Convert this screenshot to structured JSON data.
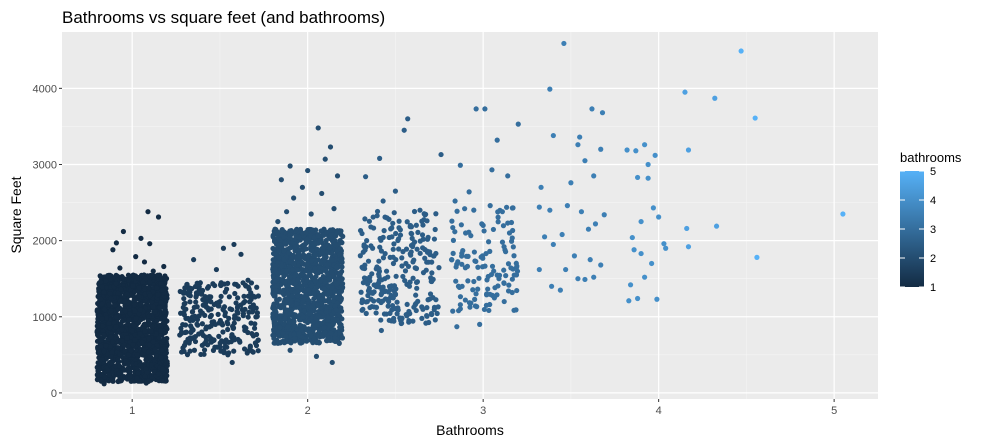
{
  "chart_data": {
    "type": "scatter",
    "title": "Bathrooms vs square feet (and bathrooms)",
    "xlabel": "Bathrooms",
    "ylabel": "Square Feet",
    "xlim": [
      0.6,
      5.25
    ],
    "ylim": [
      -80,
      4740
    ],
    "xticks": [
      1,
      2,
      3,
      4,
      5
    ],
    "yticks": [
      0,
      1000,
      2000,
      3000,
      4000
    ],
    "grid": true,
    "panel_background": "#ebebeb",
    "legend": {
      "title": "bathrooms",
      "placement": "right",
      "type": "colorbar",
      "breaks": [
        1,
        2,
        3,
        4,
        5
      ],
      "low_color": "#132b43",
      "high_color": "#56b1f7"
    },
    "points": [
      {
        "x": 0.95,
        "y": 2120,
        "c": 1
      },
      {
        "x": 1.05,
        "y": 2030,
        "c": 1
      },
      {
        "x": 1.09,
        "y": 2380,
        "c": 1
      },
      {
        "x": 1.15,
        "y": 2310,
        "c": 1
      },
      {
        "x": 0.89,
        "y": 1880,
        "c": 1
      },
      {
        "x": 1.1,
        "y": 1960,
        "c": 1
      },
      {
        "x": 1.02,
        "y": 1790,
        "c": 1
      },
      {
        "x": 1.18,
        "y": 1660,
        "c": 1
      },
      {
        "x": 0.86,
        "y": 1540,
        "c": 1
      },
      {
        "x": 1.12,
        "y": 1600,
        "c": 1
      },
      {
        "x": 0.93,
        "y": 1640,
        "c": 1
      },
      {
        "x": 1.19,
        "y": 1500,
        "c": 1
      },
      {
        "x": 0.98,
        "y": 1480,
        "c": 1
      },
      {
        "x": 0.84,
        "y": 1320,
        "c": 1
      },
      {
        "x": 1.14,
        "y": 1380,
        "c": 1
      },
      {
        "x": 0.88,
        "y": 1080,
        "c": 1
      },
      {
        "x": 1.16,
        "y": 1120,
        "c": 1
      },
      {
        "x": 0.85,
        "y": 620,
        "c": 1
      },
      {
        "x": 1.17,
        "y": 560,
        "c": 1
      },
      {
        "x": 0.86,
        "y": 300,
        "c": 1
      },
      {
        "x": 1.15,
        "y": 250,
        "c": 1
      },
      {
        "x": 0.92,
        "y": 150,
        "c": 1
      },
      {
        "x": 1.08,
        "y": 130,
        "c": 1
      },
      {
        "x": 0.84,
        "y": 120,
        "c": 1
      },
      {
        "x": 1.07,
        "y": 1720,
        "c": 1
      },
      {
        "x": 0.91,
        "y": 1970,
        "c": 1
      },
      {
        "x": 1.3,
        "y": 1380,
        "c": 1.5
      },
      {
        "x": 1.35,
        "y": 1750,
        "c": 1.5
      },
      {
        "x": 1.38,
        "y": 1330,
        "c": 1.5
      },
      {
        "x": 1.42,
        "y": 1180,
        "c": 1.5
      },
      {
        "x": 1.48,
        "y": 1620,
        "c": 1.5
      },
      {
        "x": 1.52,
        "y": 1900,
        "c": 1.5
      },
      {
        "x": 1.58,
        "y": 1950,
        "c": 1.5
      },
      {
        "x": 1.62,
        "y": 1820,
        "c": 1.5
      },
      {
        "x": 1.57,
        "y": 400,
        "c": 1.5
      },
      {
        "x": 1.4,
        "y": 1050,
        "c": 1.5
      },
      {
        "x": 1.33,
        "y": 950,
        "c": 1.5
      },
      {
        "x": 1.45,
        "y": 880,
        "c": 1.5
      },
      {
        "x": 1.55,
        "y": 980,
        "c": 1.5
      },
      {
        "x": 1.6,
        "y": 1120,
        "c": 1.5
      },
      {
        "x": 1.66,
        "y": 1480,
        "c": 1.5
      },
      {
        "x": 1.7,
        "y": 1260,
        "c": 1.5
      },
      {
        "x": 1.36,
        "y": 740,
        "c": 1.5
      },
      {
        "x": 1.47,
        "y": 1410,
        "c": 1.5
      },
      {
        "x": 1.9,
        "y": 2980,
        "c": 2
      },
      {
        "x": 2.06,
        "y": 3480,
        "c": 2
      },
      {
        "x": 2.13,
        "y": 3230,
        "c": 2
      },
      {
        "x": 2.1,
        "y": 3070,
        "c": 2
      },
      {
        "x": 2.0,
        "y": 2920,
        "c": 2
      },
      {
        "x": 1.85,
        "y": 2800,
        "c": 2
      },
      {
        "x": 1.97,
        "y": 2700,
        "c": 2
      },
      {
        "x": 2.17,
        "y": 2850,
        "c": 2
      },
      {
        "x": 1.92,
        "y": 2560,
        "c": 2
      },
      {
        "x": 2.08,
        "y": 2620,
        "c": 2
      },
      {
        "x": 2.02,
        "y": 2350,
        "c": 2
      },
      {
        "x": 1.88,
        "y": 2380,
        "c": 2
      },
      {
        "x": 1.83,
        "y": 2250,
        "c": 2
      },
      {
        "x": 2.15,
        "y": 2420,
        "c": 2
      },
      {
        "x": 1.9,
        "y": 560,
        "c": 2
      },
      {
        "x": 2.05,
        "y": 480,
        "c": 2
      },
      {
        "x": 2.14,
        "y": 400,
        "c": 2
      },
      {
        "x": 1.86,
        "y": 680,
        "c": 2
      },
      {
        "x": 2.18,
        "y": 650,
        "c": 2
      },
      {
        "x": 2.33,
        "y": 2840,
        "c": 2.5
      },
      {
        "x": 2.41,
        "y": 3080,
        "c": 2.5
      },
      {
        "x": 2.5,
        "y": 2650,
        "c": 2.5
      },
      {
        "x": 2.55,
        "y": 3450,
        "c": 2.5
      },
      {
        "x": 2.57,
        "y": 3600,
        "c": 2.5
      },
      {
        "x": 2.43,
        "y": 2520,
        "c": 2.5
      },
      {
        "x": 2.64,
        "y": 2400,
        "c": 2.5
      },
      {
        "x": 2.68,
        "y": 2260,
        "c": 2.5
      },
      {
        "x": 2.76,
        "y": 3130,
        "c": 2.5
      },
      {
        "x": 2.36,
        "y": 2180,
        "c": 2.5
      },
      {
        "x": 2.48,
        "y": 2050,
        "c": 2.5
      },
      {
        "x": 2.6,
        "y": 1950,
        "c": 2.5
      },
      {
        "x": 2.72,
        "y": 1800,
        "c": 2.5
      },
      {
        "x": 2.31,
        "y": 1650,
        "c": 2.5
      },
      {
        "x": 2.44,
        "y": 1500,
        "c": 2.5
      },
      {
        "x": 2.58,
        "y": 1400,
        "c": 2.5
      },
      {
        "x": 2.7,
        "y": 1300,
        "c": 2.5
      },
      {
        "x": 2.34,
        "y": 1200,
        "c": 2.5
      },
      {
        "x": 2.39,
        "y": 1050,
        "c": 2.5
      },
      {
        "x": 2.53,
        "y": 950,
        "c": 2.5
      },
      {
        "x": 2.65,
        "y": 1130,
        "c": 2.5
      },
      {
        "x": 2.42,
        "y": 820,
        "c": 2.5
      },
      {
        "x": 2.56,
        "y": 1700,
        "c": 2.5
      },
      {
        "x": 2.66,
        "y": 1580,
        "c": 2.5
      },
      {
        "x": 2.37,
        "y": 1900,
        "c": 2.5
      },
      {
        "x": 2.47,
        "y": 1780,
        "c": 2.5
      },
      {
        "x": 2.87,
        "y": 2990,
        "c": 3
      },
      {
        "x": 2.96,
        "y": 3730,
        "c": 3
      },
      {
        "x": 3.01,
        "y": 3730,
        "c": 3
      },
      {
        "x": 3.08,
        "y": 3320,
        "c": 3
      },
      {
        "x": 3.2,
        "y": 3530,
        "c": 3
      },
      {
        "x": 3.05,
        "y": 2930,
        "c": 3
      },
      {
        "x": 3.14,
        "y": 2850,
        "c": 3
      },
      {
        "x": 2.84,
        "y": 2520,
        "c": 3
      },
      {
        "x": 2.92,
        "y": 2640,
        "c": 3
      },
      {
        "x": 3.17,
        "y": 2430,
        "c": 3
      },
      {
        "x": 2.9,
        "y": 2100,
        "c": 3
      },
      {
        "x": 3.0,
        "y": 2200,
        "c": 3
      },
      {
        "x": 3.11,
        "y": 1980,
        "c": 3
      },
      {
        "x": 2.82,
        "y": 1750,
        "c": 3
      },
      {
        "x": 2.95,
        "y": 1850,
        "c": 3
      },
      {
        "x": 3.06,
        "y": 1600,
        "c": 3
      },
      {
        "x": 3.19,
        "y": 1550,
        "c": 3
      },
      {
        "x": 2.88,
        "y": 1400,
        "c": 3
      },
      {
        "x": 3.02,
        "y": 1300,
        "c": 3
      },
      {
        "x": 3.12,
        "y": 1200,
        "c": 3
      },
      {
        "x": 2.86,
        "y": 1080,
        "c": 3
      },
      {
        "x": 2.93,
        "y": 1180,
        "c": 3
      },
      {
        "x": 2.85,
        "y": 870,
        "c": 3
      },
      {
        "x": 2.98,
        "y": 900,
        "c": 3
      },
      {
        "x": 3.09,
        "y": 1500,
        "c": 3
      },
      {
        "x": 2.97,
        "y": 1650,
        "c": 3
      },
      {
        "x": 3.15,
        "y": 2100,
        "c": 3
      },
      {
        "x": 3.04,
        "y": 2460,
        "c": 3
      },
      {
        "x": 3.38,
        "y": 3990,
        "c": 3.5
      },
      {
        "x": 3.46,
        "y": 4590,
        "c": 3.5
      },
      {
        "x": 3.4,
        "y": 3380,
        "c": 3.5
      },
      {
        "x": 3.55,
        "y": 3360,
        "c": 3.5
      },
      {
        "x": 3.54,
        "y": 3260,
        "c": 3.5
      },
      {
        "x": 3.62,
        "y": 3730,
        "c": 3.5
      },
      {
        "x": 3.68,
        "y": 3680,
        "c": 3.5
      },
      {
        "x": 3.67,
        "y": 3200,
        "c": 3.5
      },
      {
        "x": 3.58,
        "y": 3050,
        "c": 3.5
      },
      {
        "x": 3.5,
        "y": 2760,
        "c": 3.5
      },
      {
        "x": 3.63,
        "y": 2850,
        "c": 3.5
      },
      {
        "x": 3.33,
        "y": 2700,
        "c": 3.5
      },
      {
        "x": 3.32,
        "y": 2440,
        "c": 3.5
      },
      {
        "x": 3.38,
        "y": 2400,
        "c": 3.5
      },
      {
        "x": 3.48,
        "y": 2460,
        "c": 3.5
      },
      {
        "x": 3.56,
        "y": 2380,
        "c": 3.5
      },
      {
        "x": 3.69,
        "y": 2340,
        "c": 3.5
      },
      {
        "x": 3.6,
        "y": 2150,
        "c": 3.5
      },
      {
        "x": 3.64,
        "y": 2220,
        "c": 3.5
      },
      {
        "x": 3.35,
        "y": 2050,
        "c": 3.5
      },
      {
        "x": 3.45,
        "y": 2080,
        "c": 3.5
      },
      {
        "x": 3.4,
        "y": 1950,
        "c": 3.5
      },
      {
        "x": 3.52,
        "y": 1800,
        "c": 3.5
      },
      {
        "x": 3.61,
        "y": 1750,
        "c": 3.5
      },
      {
        "x": 3.67,
        "y": 1680,
        "c": 3.5
      },
      {
        "x": 3.54,
        "y": 1500,
        "c": 3.5
      },
      {
        "x": 3.58,
        "y": 1490,
        "c": 3.5
      },
      {
        "x": 3.63,
        "y": 1520,
        "c": 3.5
      },
      {
        "x": 3.39,
        "y": 1400,
        "c": 3.5
      },
      {
        "x": 3.44,
        "y": 1350,
        "c": 3.5
      },
      {
        "x": 3.32,
        "y": 1620,
        "c": 3.5
      },
      {
        "x": 3.47,
        "y": 1620,
        "c": 3.5
      },
      {
        "x": 3.82,
        "y": 3190,
        "c": 4
      },
      {
        "x": 3.87,
        "y": 3180,
        "c": 4
      },
      {
        "x": 3.92,
        "y": 3260,
        "c": 4
      },
      {
        "x": 3.98,
        "y": 3120,
        "c": 4
      },
      {
        "x": 3.94,
        "y": 3000,
        "c": 4
      },
      {
        "x": 3.88,
        "y": 2830,
        "c": 4
      },
      {
        "x": 3.94,
        "y": 2820,
        "c": 4
      },
      {
        "x": 3.97,
        "y": 2430,
        "c": 4
      },
      {
        "x": 4.0,
        "y": 2310,
        "c": 4
      },
      {
        "x": 3.9,
        "y": 2250,
        "c": 4
      },
      {
        "x": 3.85,
        "y": 2040,
        "c": 4
      },
      {
        "x": 4.03,
        "y": 1960,
        "c": 4
      },
      {
        "x": 4.04,
        "y": 1900,
        "c": 4
      },
      {
        "x": 3.86,
        "y": 1880,
        "c": 4
      },
      {
        "x": 3.9,
        "y": 1830,
        "c": 4
      },
      {
        "x": 3.96,
        "y": 1700,
        "c": 4
      },
      {
        "x": 3.92,
        "y": 1520,
        "c": 4
      },
      {
        "x": 3.84,
        "y": 1420,
        "c": 4
      },
      {
        "x": 3.88,
        "y": 1240,
        "c": 4
      },
      {
        "x": 3.83,
        "y": 1210,
        "c": 4
      },
      {
        "x": 3.99,
        "y": 1230,
        "c": 4
      },
      {
        "x": 4.15,
        "y": 3950,
        "c": 4.5
      },
      {
        "x": 4.32,
        "y": 3870,
        "c": 4.5
      },
      {
        "x": 4.17,
        "y": 3190,
        "c": 4.5
      },
      {
        "x": 4.16,
        "y": 2160,
        "c": 4.5
      },
      {
        "x": 4.33,
        "y": 2190,
        "c": 4.5
      },
      {
        "x": 4.17,
        "y": 1920,
        "c": 4.5
      },
      {
        "x": 4.47,
        "y": 4490,
        "c": 5
      },
      {
        "x": 4.55,
        "y": 3610,
        "c": 5
      },
      {
        "x": 4.56,
        "y": 1780,
        "c": 5
      },
      {
        "x": 5.05,
        "y": 2350,
        "c": 5
      }
    ],
    "dense_bands": [
      {
        "x_min": 0.8,
        "x_max": 1.2,
        "y_min": 150,
        "y_max": 1550,
        "c": 1,
        "n": 1700
      },
      {
        "x_min": 1.27,
        "x_max": 1.72,
        "y_min": 500,
        "y_max": 1450,
        "c": 1.5,
        "n": 260
      },
      {
        "x_min": 1.8,
        "x_max": 2.2,
        "y_min": 650,
        "y_max": 2150,
        "c": 2,
        "n": 1300
      },
      {
        "x_min": 2.3,
        "x_max": 2.75,
        "y_min": 900,
        "y_max": 2400,
        "c": 2.5,
        "n": 240
      },
      {
        "x_min": 2.82,
        "x_max": 3.2,
        "y_min": 1050,
        "y_max": 2450,
        "c": 3,
        "n": 110
      }
    ]
  }
}
